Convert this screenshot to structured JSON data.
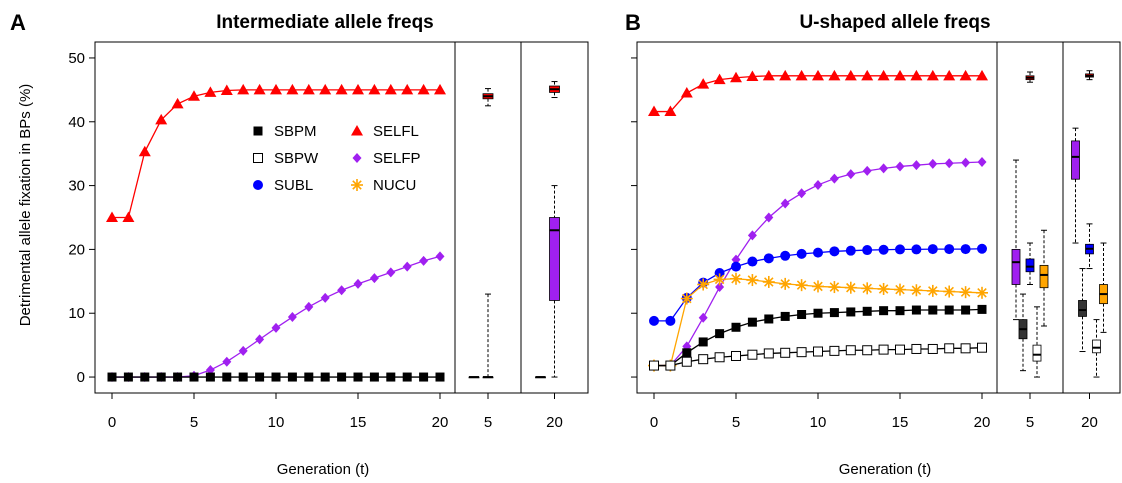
{
  "figure": {
    "ylabel": "Detrimental allele fixation in BPs (%)",
    "xlabel": "Generation (t)"
  },
  "legend": [
    {
      "key": "SBPM",
      "label": "SBPM"
    },
    {
      "key": "SELFL",
      "label": "SELFL"
    },
    {
      "key": "SBPW",
      "label": "SBPW"
    },
    {
      "key": "SELFP",
      "label": "SELFP"
    },
    {
      "key": "SUBL",
      "label": "SUBL"
    },
    {
      "key": "NUCU",
      "label": "NUCU"
    }
  ],
  "series_styles": {
    "SBPM": {
      "color": "#000000",
      "marker": "square-filled"
    },
    "SBPW": {
      "color": "#000000",
      "marker": "square-open"
    },
    "SUBL": {
      "color": "#0000ff",
      "marker": "circle"
    },
    "SELFL": {
      "color": "#ff0000",
      "marker": "triangle"
    },
    "SELFP": {
      "color": "#a020f0",
      "marker": "diamond"
    },
    "NUCU": {
      "color": "#ffa500",
      "marker": "asterisk"
    }
  },
  "chart_data": [
    {
      "panel": "A",
      "type": "line",
      "title": "Intermediate allele freqs",
      "xlabel": "Generation (t)",
      "ylabel": "Detrimental allele fixation in BPs (%)",
      "ylim": [
        -2.5,
        52.5
      ],
      "yticks": [
        0,
        10,
        20,
        30,
        40,
        50
      ],
      "xticks": [
        0,
        5,
        10,
        15,
        20
      ],
      "x": [
        0,
        1,
        2,
        3,
        4,
        5,
        6,
        7,
        8,
        9,
        10,
        11,
        12,
        13,
        14,
        15,
        16,
        17,
        18,
        19,
        20
      ],
      "series": [
        {
          "key": "SELFL",
          "values": [
            25,
            25,
            35.3,
            40.3,
            42.8,
            44,
            44.6,
            44.9,
            45,
            45,
            45,
            45,
            45,
            45,
            45,
            45,
            45,
            45,
            45,
            45,
            45
          ]
        },
        {
          "key": "SELFP",
          "values": [
            0,
            0,
            0,
            0,
            0,
            0.2,
            1.1,
            2.4,
            4.1,
            5.9,
            7.7,
            9.4,
            11,
            12.4,
            13.6,
            14.6,
            15.5,
            16.4,
            17.3,
            18.2,
            18.9
          ]
        },
        {
          "key": "SBPM",
          "values": [
            0,
            0,
            0,
            0,
            0,
            0,
            0,
            0,
            0,
            0,
            0,
            0,
            0,
            0,
            0,
            0,
            0,
            0,
            0,
            0,
            0
          ]
        }
      ],
      "boxplots": [
        {
          "x_label": "5",
          "boxes": [
            {
              "key": "SBPM",
              "lo": 0,
              "q1": 0,
              "med": 0,
              "q3": 0,
              "hi": 0
            },
            {
              "key": "SELFP",
              "lo": 0,
              "q1": 0,
              "med": 0,
              "q3": 0,
              "hi": 13
            },
            {
              "key": "SELFL",
              "lo": 42.5,
              "q1": 43.6,
              "med": 44,
              "q3": 44.4,
              "hi": 45.2
            }
          ]
        },
        {
          "x_label": "20",
          "boxes": [
            {
              "key": "SBPM",
              "lo": 0,
              "q1": 0,
              "med": 0,
              "q3": 0,
              "hi": 0
            },
            {
              "key": "SELFP",
              "lo": 0,
              "q1": 12,
              "med": 23,
              "q3": 25,
              "hi": 30
            },
            {
              "key": "SELFL",
              "lo": 43.8,
              "q1": 44.6,
              "med": 45.1,
              "q3": 45.6,
              "hi": 46.3
            }
          ]
        }
      ]
    },
    {
      "panel": "B",
      "type": "line",
      "title": "U-shaped allele freqs",
      "xlabel": "Generation (t)",
      "ylim": [
        -2.5,
        52.5
      ],
      "yticks": [
        0,
        10,
        20,
        30,
        40,
        50
      ],
      "xticks": [
        0,
        5,
        10,
        15,
        20
      ],
      "x": [
        0,
        1,
        2,
        3,
        4,
        5,
        6,
        7,
        8,
        9,
        10,
        11,
        12,
        13,
        14,
        15,
        16,
        17,
        18,
        19,
        20
      ],
      "series": [
        {
          "key": "SELFL",
          "values": [
            41.6,
            41.6,
            44.5,
            45.9,
            46.6,
            46.9,
            47.1,
            47.2,
            47.2,
            47.2,
            47.2,
            47.2,
            47.2,
            47.2,
            47.2,
            47.2,
            47.2,
            47.2,
            47.2,
            47.2,
            47.2
          ]
        },
        {
          "key": "SELFP",
          "values": [
            1.8,
            1.8,
            4.8,
            9.3,
            14.1,
            18.4,
            22.2,
            25,
            27.2,
            28.8,
            30.1,
            31.1,
            31.8,
            32.3,
            32.7,
            33,
            33.2,
            33.4,
            33.5,
            33.6,
            33.7
          ]
        },
        {
          "key": "SUBL",
          "values": [
            8.8,
            8.8,
            12.4,
            14.8,
            16.3,
            17.3,
            18.1,
            18.6,
            19,
            19.3,
            19.5,
            19.7,
            19.8,
            19.9,
            19.95,
            20,
            20,
            20.05,
            20.05,
            20.05,
            20.1
          ]
        },
        {
          "key": "NUCU",
          "values": [
            1.8,
            1.8,
            12.3,
            14.5,
            15.3,
            15.4,
            15.2,
            14.9,
            14.6,
            14.4,
            14.2,
            14.1,
            14,
            13.9,
            13.8,
            13.7,
            13.6,
            13.5,
            13.4,
            13.3,
            13.2
          ]
        },
        {
          "key": "SBPM",
          "values": [
            1.8,
            1.8,
            3.8,
            5.5,
            6.8,
            7.8,
            8.6,
            9.1,
            9.5,
            9.8,
            10,
            10.1,
            10.2,
            10.3,
            10.4,
            10.4,
            10.5,
            10.5,
            10.5,
            10.5,
            10.6
          ]
        },
        {
          "key": "SBPW",
          "values": [
            1.8,
            1.8,
            2.4,
            2.8,
            3.1,
            3.3,
            3.5,
            3.7,
            3.8,
            3.9,
            4,
            4.1,
            4.2,
            4.2,
            4.3,
            4.3,
            4.4,
            4.4,
            4.5,
            4.5,
            4.6
          ]
        }
      ],
      "boxplots": [
        {
          "x_label": "5",
          "boxes": [
            {
              "key": "SELFP",
              "lo": 9,
              "q1": 14.5,
              "med": 18,
              "q3": 20,
              "hi": 34
            },
            {
              "key": "SBPM",
              "lo": 1,
              "q1": 6,
              "med": 7.5,
              "q3": 9,
              "hi": 13
            },
            {
              "key": "SELFL",
              "lo": 46.2,
              "q1": 46.6,
              "med": 46.9,
              "q3": 47.2,
              "hi": 47.8
            },
            {
              "key": "SUBL",
              "lo": 14.5,
              "q1": 16.5,
              "med": 17.3,
              "q3": 18.5,
              "hi": 21
            },
            {
              "key": "SBPW",
              "lo": 0,
              "q1": 2.5,
              "med": 3.5,
              "q3": 5,
              "hi": 11
            },
            {
              "key": "NUCU",
              "lo": 8,
              "q1": 14,
              "med": 16,
              "q3": 17.5,
              "hi": 23
            }
          ]
        },
        {
          "x_label": "20",
          "boxes": [
            {
              "key": "SELFP",
              "lo": 21,
              "q1": 31,
              "med": 34.5,
              "q3": 37,
              "hi": 39
            },
            {
              "key": "SBPM",
              "lo": 4,
              "q1": 9.5,
              "med": 10.5,
              "q3": 12,
              "hi": 17
            },
            {
              "key": "SELFL",
              "lo": 46.6,
              "q1": 47,
              "med": 47.2,
              "q3": 47.5,
              "hi": 48
            },
            {
              "key": "SUBL",
              "lo": 17,
              "q1": 19.3,
              "med": 20.1,
              "q3": 20.8,
              "hi": 24
            },
            {
              "key": "SBPW",
              "lo": 0,
              "q1": 3.8,
              "med": 4.6,
              "q3": 5.8,
              "hi": 9
            },
            {
              "key": "NUCU",
              "lo": 7,
              "q1": 11.5,
              "med": 13,
              "q3": 14.5,
              "hi": 21
            }
          ]
        }
      ]
    }
  ]
}
